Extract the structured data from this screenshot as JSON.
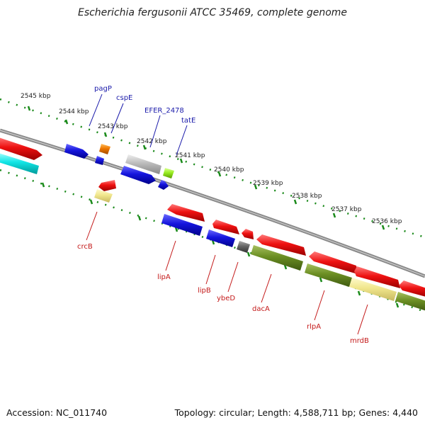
{
  "title": "Escherichia fergusonii ATCC 35469, complete genome",
  "footer": {
    "accession": "Accession: NC_011740",
    "summary": "Topology: circular; Length: 4,588,711 bp; Genes: 4,440"
  },
  "scale_labels": [
    "2545 kbp",
    "2544 kbp",
    "2543 kbp",
    "2542 kbp",
    "2541 kbp",
    "2540 kbp",
    "2539 kbp",
    "2538 kbp",
    "2537 kbp",
    "2536 kbp"
  ],
  "gene_labels_top": [
    {
      "name": "pagP",
      "color": "#1a1aaa"
    },
    {
      "name": "cspE",
      "color": "#1a1aaa"
    },
    {
      "name": "EFER_2478",
      "color": "#1a1aaa"
    },
    {
      "name": "tatE",
      "color": "#1a1aaa"
    }
  ],
  "gene_labels_bottom": [
    {
      "name": "crcB",
      "color": "#c41a1a"
    },
    {
      "name": "lipA",
      "color": "#c41a1a"
    },
    {
      "name": "lipB",
      "color": "#c41a1a"
    },
    {
      "name": "ybeD",
      "color": "#c41a1a"
    },
    {
      "name": "dacA",
      "color": "#c41a1a"
    },
    {
      "name": "rlpA",
      "color": "#c41a1a"
    },
    {
      "name": "mrdB",
      "color": "#c41a1a"
    }
  ],
  "feature_colors": {
    "red": "#ee1111",
    "blue": "#1515dd",
    "cyan": "#11e5e5",
    "olive": "#6b8e23",
    "khaki": "#f0e68c",
    "gray": "#bbbbbb",
    "darkgray": "#666666",
    "orange": "#ee7700",
    "green": "#99ee22",
    "tick": "#1a8a1a",
    "backbone": "#777777"
  }
}
